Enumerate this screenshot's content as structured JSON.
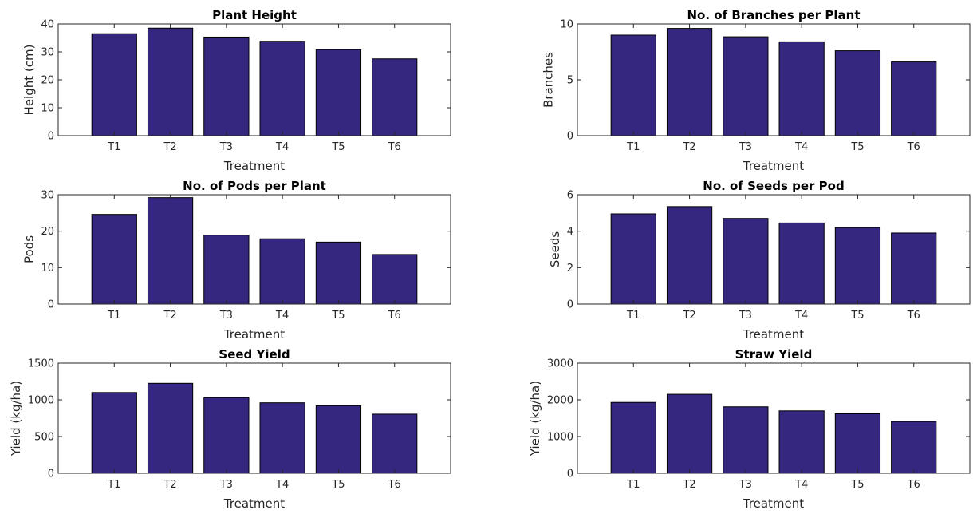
{
  "style": {
    "bar_color": "#35277f",
    "bar_edge_color": "#000000",
    "axis_color": "#262626"
  },
  "chart_data": [
    {
      "type": "bar",
      "title": "Plant Height",
      "xlabel": "Treatment",
      "ylabel": "Height (cm)",
      "categories": [
        "T1",
        "T2",
        "T3",
        "T4",
        "T5",
        "T6"
      ],
      "values": [
        36.5,
        38.5,
        35.3,
        33.8,
        30.8,
        27.5
      ],
      "ylim": [
        0,
        40
      ],
      "yticks": [
        0,
        10,
        20,
        30,
        40
      ],
      "grid": false
    },
    {
      "type": "bar",
      "title": "No. of Branches per Plant",
      "xlabel": "Treatment",
      "ylabel": "Branches",
      "categories": [
        "T1",
        "T2",
        "T3",
        "T4",
        "T5",
        "T6"
      ],
      "values": [
        9.0,
        9.6,
        8.85,
        8.4,
        7.6,
        6.6
      ],
      "ylim": [
        0,
        10
      ],
      "yticks": [
        0,
        5,
        10
      ],
      "grid": false
    },
    {
      "type": "bar",
      "title": "No. of Pods per Plant",
      "xlabel": "Treatment",
      "ylabel": "Pods",
      "categories": [
        "T1",
        "T2",
        "T3",
        "T4",
        "T5",
        "T6"
      ],
      "values": [
        24.6,
        29.2,
        18.9,
        17.9,
        17.0,
        13.6
      ],
      "ylim": [
        0,
        30
      ],
      "yticks": [
        0,
        10,
        20,
        30
      ],
      "grid": false
    },
    {
      "type": "bar",
      "title": "No. of Seeds per Pod",
      "xlabel": "Treatment",
      "ylabel": "Seeds",
      "categories": [
        "T1",
        "T2",
        "T3",
        "T4",
        "T5",
        "T6"
      ],
      "values": [
        4.95,
        5.35,
        4.7,
        4.45,
        4.2,
        3.9
      ],
      "ylim": [
        0,
        6
      ],
      "yticks": [
        0,
        2,
        4,
        6
      ],
      "grid": false
    },
    {
      "type": "bar",
      "title": "Seed Yield",
      "xlabel": "Treatment",
      "ylabel": "Yield (kg/ha)",
      "categories": [
        "T1",
        "T2",
        "T3",
        "T4",
        "T5",
        "T6"
      ],
      "values": [
        1100,
        1225,
        1030,
        960,
        920,
        805
      ],
      "ylim": [
        0,
        1500
      ],
      "yticks": [
        0,
        500,
        1000,
        1500
      ],
      "grid": false
    },
    {
      "type": "bar",
      "title": "Straw Yield",
      "xlabel": "Treatment",
      "ylabel": "Yield (kg/ha)",
      "categories": [
        "T1",
        "T2",
        "T3",
        "T4",
        "T5",
        "T6"
      ],
      "values": [
        1930,
        2150,
        1810,
        1700,
        1620,
        1410
      ],
      "ylim": [
        0,
        3000
      ],
      "yticks": [
        0,
        1000,
        2000,
        3000
      ],
      "grid": false
    }
  ]
}
